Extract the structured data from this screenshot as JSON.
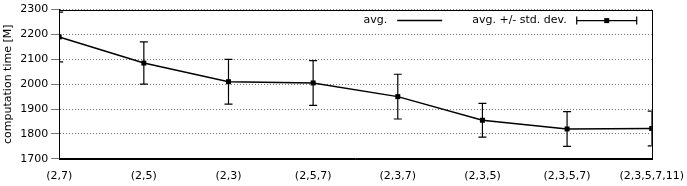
{
  "chart_data": {
    "type": "line",
    "y_label": "computation time [M]",
    "categories": [
      "(2,7)",
      "(2,5)",
      "(2,3)",
      "(2,5,7)",
      "(2,3,7)",
      "(2,3,5)",
      "(2,3,5,7)",
      "(2,3,5,7,11)"
    ],
    "series": [
      {
        "name": "avg.",
        "color": "#000000",
        "line_style": "solid",
        "values": [
          2190,
          2085,
          2010,
          2005,
          1950,
          1855,
          1820,
          1822
        ]
      }
    ],
    "error_bars": {
      "name": "avg. +/- std. dev.",
      "color": "#000000",
      "marker": "square",
      "std_dev": [
        100,
        85,
        90,
        90,
        90,
        68,
        70,
        70
      ]
    },
    "ylim": [
      1700,
      2300
    ],
    "yticks": [
      1700,
      1800,
      1900,
      2000,
      2100,
      2200,
      2300
    ],
    "grid": true,
    "legend": "top"
  }
}
